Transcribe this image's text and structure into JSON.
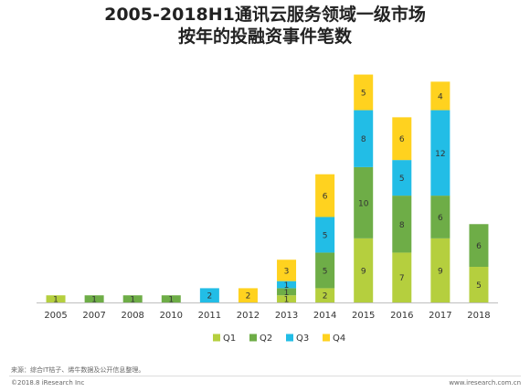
{
  "chart_data": {
    "type": "bar",
    "stacked": true,
    "title": [
      "2005-2018H1通讯云服务领域一级市场",
      "按年的投融资事件笔数"
    ],
    "categories": [
      "2005",
      "2007",
      "2008",
      "2010",
      "2011",
      "2012",
      "2013",
      "2014",
      "2015",
      "2016",
      "2017",
      "2018"
    ],
    "series": [
      {
        "name": "Q1",
        "color": "#b5cf3e",
        "values": [
          1,
          0,
          0,
          0,
          0,
          0,
          1,
          2,
          9,
          7,
          9,
          5
        ]
      },
      {
        "name": "Q2",
        "color": "#6ead47",
        "values": [
          0,
          1,
          1,
          1,
          0,
          0,
          1,
          5,
          10,
          8,
          6,
          6
        ]
      },
      {
        "name": "Q3",
        "color": "#22bde6",
        "values": [
          0,
          0,
          0,
          0,
          2,
          0,
          1,
          5,
          8,
          5,
          12,
          0
        ]
      },
      {
        "name": "Q4",
        "color": "#ffd21f",
        "values": [
          0,
          0,
          0,
          0,
          0,
          2,
          3,
          6,
          5,
          6,
          4,
          0
        ]
      }
    ],
    "ylim": [
      0,
      34
    ],
    "grid": false,
    "legend": "bottom"
  },
  "footer": {
    "source": "来源：综合IT桔子、烯牛数据及公开信息整理。",
    "copyright": "©2018.8 iResearch Inc",
    "website": "www.iresearch.com.cn"
  }
}
